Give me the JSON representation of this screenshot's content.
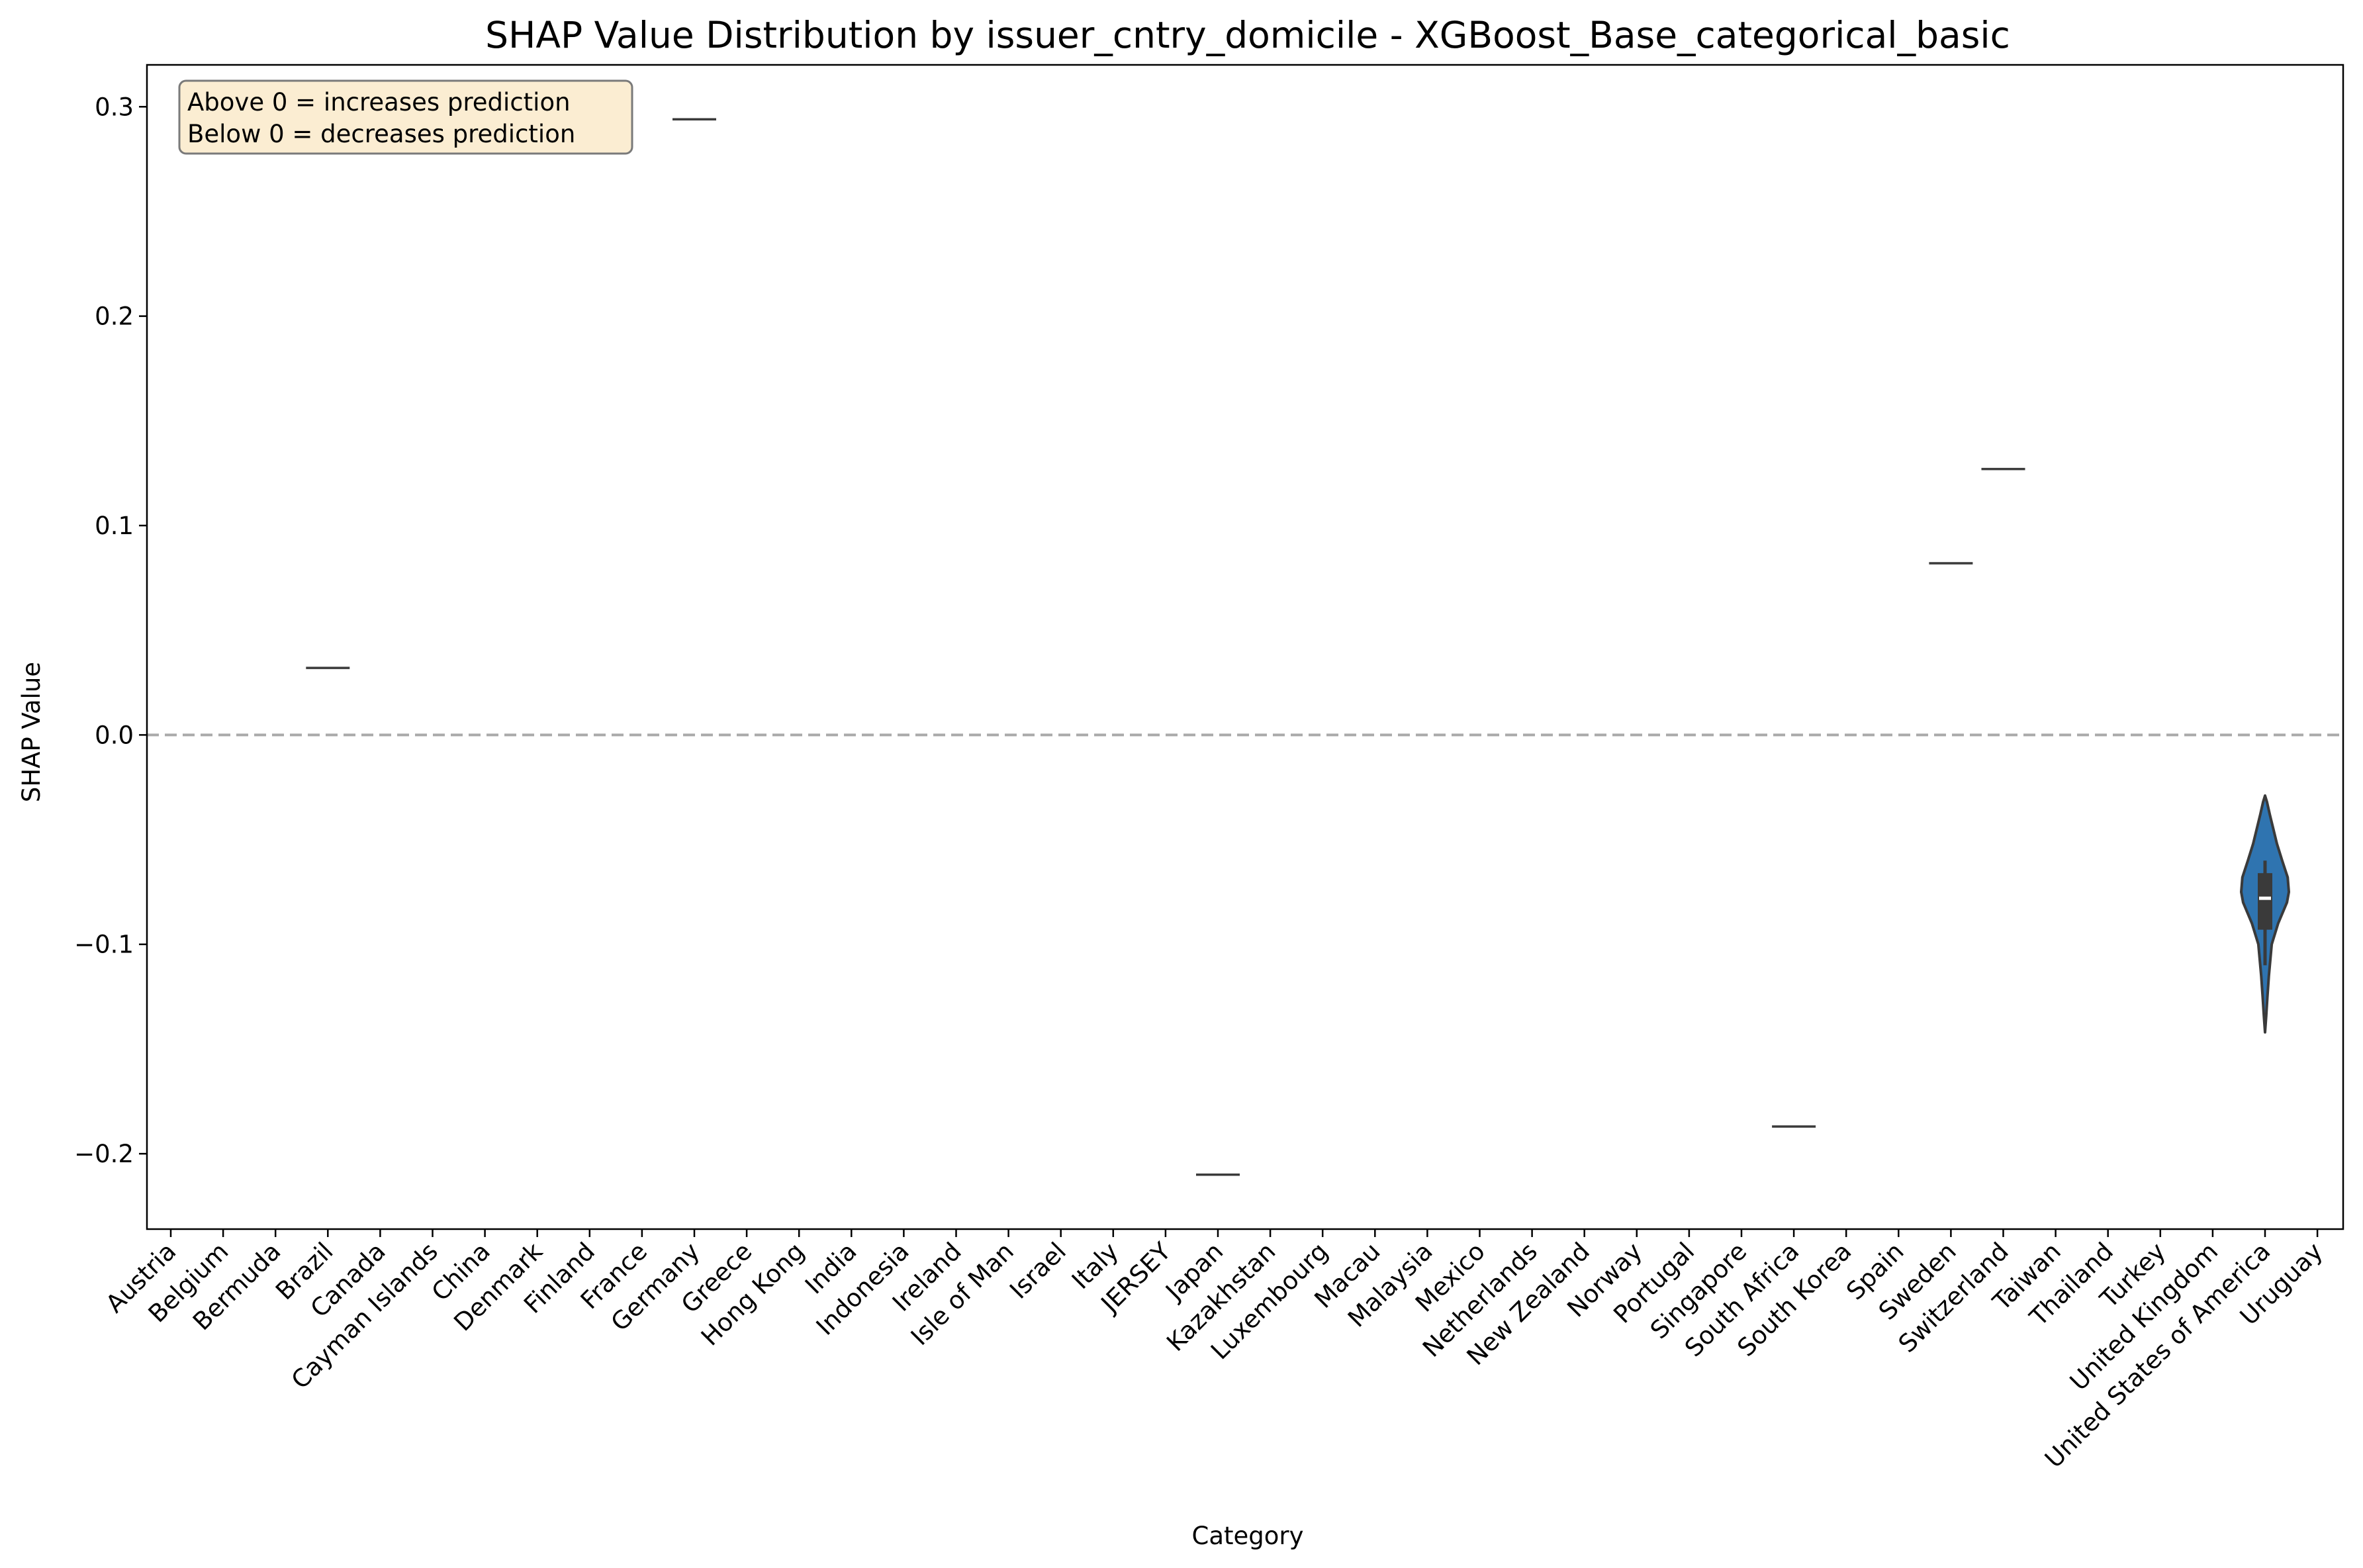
{
  "chart_data": {
    "type": "violin",
    "title": "SHAP Value Distribution by issuer_cntry_domicile - XGBoost_Base_categorical_basic",
    "xlabel": "Category",
    "ylabel": "SHAP Value",
    "ylim": [
      -0.236,
      0.32
    ],
    "yticks": [
      -0.2,
      -0.1,
      0.0,
      0.1,
      0.2,
      0.3
    ],
    "ytick_labels": [
      "−0.2",
      "−0.1",
      "0.0",
      "0.1",
      "0.2",
      "0.3"
    ],
    "categories": [
      "Austria",
      "Belgium",
      "Bermuda",
      "Brazil",
      "Canada",
      "Cayman Islands",
      "China",
      "Denmark",
      "Finland",
      "France",
      "Germany",
      "Greece",
      "Hong Kong",
      "India",
      "Indonesia",
      "Ireland",
      "Isle of Man",
      "Israel",
      "Italy",
      "JERSEY",
      "Japan",
      "Kazakhstan",
      "Luxembourg",
      "Macau",
      "Malaysia",
      "Mexico",
      "Netherlands",
      "New Zealand",
      "Norway",
      "Portugal",
      "Singapore",
      "South Africa",
      "South Korea",
      "Spain",
      "Sweden",
      "Switzerland",
      "Taiwan",
      "Thailand",
      "Turkey",
      "United Kingdom",
      "United States of America",
      "Uruguay"
    ],
    "single_values": [
      {
        "category": "Brazil",
        "value": 0.032
      },
      {
        "category": "Germany",
        "value": 0.294
      },
      {
        "category": "Japan",
        "value": -0.21
      },
      {
        "category": "South Africa",
        "value": -0.187
      },
      {
        "category": "Sweden",
        "value": 0.082
      },
      {
        "category": "Switzerland",
        "value": 0.127
      }
    ],
    "violins": [
      {
        "category": "United States of America",
        "min": -0.142,
        "max": -0.029,
        "q1": -0.093,
        "median": -0.078,
        "q3": -0.066,
        "whisker_low": -0.11,
        "whisker_high": -0.06,
        "profile": [
          [
            -0.142,
            0.0
          ],
          [
            -0.134,
            0.05
          ],
          [
            -0.125,
            0.1
          ],
          [
            -0.115,
            0.16
          ],
          [
            -0.1,
            0.28
          ],
          [
            -0.09,
            0.55
          ],
          [
            -0.08,
            0.92
          ],
          [
            -0.075,
            1.0
          ],
          [
            -0.068,
            0.95
          ],
          [
            -0.06,
            0.72
          ],
          [
            -0.052,
            0.5
          ],
          [
            -0.045,
            0.35
          ],
          [
            -0.038,
            0.2
          ],
          [
            -0.032,
            0.08
          ],
          [
            -0.029,
            0.0
          ]
        ]
      }
    ],
    "reference_line": {
      "y": 0.0,
      "style": "dashed",
      "color": "#aaaaaa"
    },
    "annotation": {
      "lines": [
        "Above 0 = increases prediction",
        "Below 0 = decreases prediction"
      ],
      "position": "top-left"
    },
    "colors": {
      "violin_fill": "#2f74b0",
      "violin_edge": "#3a3a3a",
      "line": "#3a3a3a",
      "box": "#3a3a3a",
      "median": "#ffffff",
      "annotation_bg": "#fbedd2",
      "annotation_edge": "#7a7a7a"
    },
    "grid": false,
    "legend": "none"
  }
}
